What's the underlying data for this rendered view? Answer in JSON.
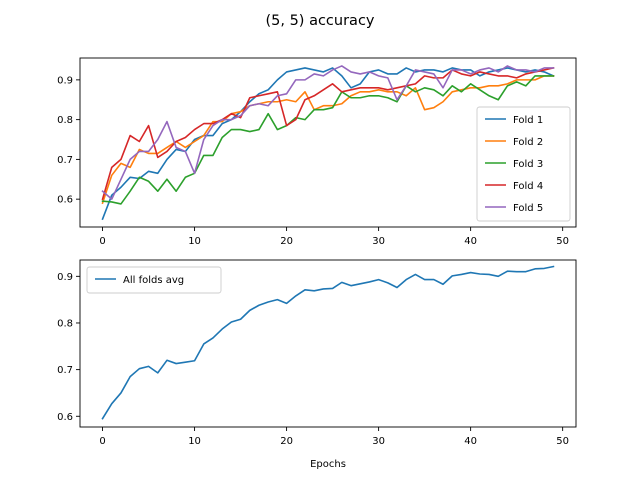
{
  "figure": {
    "title": "(5, 5) accuracy"
  },
  "chart_data": [
    {
      "type": "line",
      "title": "",
      "xlabel": "",
      "ylabel": "",
      "xlim": [
        -2.45,
        51.45
      ],
      "ylim": [
        0.53,
        0.955
      ],
      "xticks": [
        0,
        10,
        20,
        30,
        40,
        50
      ],
      "yticks": [
        0.6,
        0.7,
        0.8,
        0.9
      ],
      "legend_position": "lower right",
      "x": [
        0,
        1,
        2,
        3,
        4,
        5,
        6,
        7,
        8,
        9,
        10,
        11,
        12,
        13,
        14,
        15,
        16,
        17,
        18,
        19,
        20,
        21,
        22,
        23,
        24,
        25,
        26,
        27,
        28,
        29,
        30,
        31,
        32,
        33,
        34,
        35,
        36,
        37,
        38,
        39,
        40,
        41,
        42,
        43,
        44,
        45,
        46,
        47,
        48,
        49
      ],
      "series": [
        {
          "name": "Fold 1",
          "color": "#1f77b4",
          "values": [
            0.55,
            0.61,
            0.63,
            0.655,
            0.652,
            0.67,
            0.665,
            0.7,
            0.725,
            0.72,
            0.75,
            0.76,
            0.76,
            0.79,
            0.8,
            0.82,
            0.845,
            0.865,
            0.875,
            0.9,
            0.92,
            0.925,
            0.93,
            0.925,
            0.92,
            0.93,
            0.91,
            0.88,
            0.89,
            0.92,
            0.925,
            0.915,
            0.915,
            0.93,
            0.92,
            0.925,
            0.925,
            0.92,
            0.93,
            0.925,
            0.925,
            0.91,
            0.92,
            0.925,
            0.93,
            0.925,
            0.92,
            0.925,
            0.92,
            0.91
          ]
        },
        {
          "name": "Fold 2",
          "color": "#ff7f0e",
          "values": [
            0.59,
            0.66,
            0.69,
            0.68,
            0.725,
            0.715,
            0.715,
            0.73,
            0.745,
            0.73,
            0.745,
            0.76,
            0.795,
            0.795,
            0.815,
            0.82,
            0.835,
            0.84,
            0.845,
            0.845,
            0.85,
            0.845,
            0.87,
            0.825,
            0.835,
            0.835,
            0.84,
            0.86,
            0.87,
            0.87,
            0.875,
            0.87,
            0.87,
            0.86,
            0.88,
            0.825,
            0.83,
            0.845,
            0.87,
            0.875,
            0.88,
            0.88,
            0.885,
            0.885,
            0.89,
            0.9,
            0.9,
            0.9,
            0.91,
            0.91
          ]
        },
        {
          "name": "Fold 3",
          "color": "#2ca02c",
          "values": [
            0.595,
            0.593,
            0.588,
            0.62,
            0.655,
            0.645,
            0.62,
            0.65,
            0.62,
            0.655,
            0.665,
            0.71,
            0.71,
            0.755,
            0.775,
            0.775,
            0.77,
            0.775,
            0.815,
            0.775,
            0.785,
            0.805,
            0.8,
            0.825,
            0.825,
            0.83,
            0.87,
            0.855,
            0.855,
            0.86,
            0.86,
            0.855,
            0.845,
            0.885,
            0.87,
            0.88,
            0.875,
            0.86,
            0.885,
            0.87,
            0.89,
            0.875,
            0.86,
            0.85,
            0.885,
            0.895,
            0.885,
            0.91,
            0.91,
            0.91
          ]
        },
        {
          "name": "Fold 4",
          "color": "#d62728",
          "values": [
            0.6,
            0.68,
            0.7,
            0.76,
            0.745,
            0.785,
            0.705,
            0.72,
            0.745,
            0.755,
            0.775,
            0.79,
            0.79,
            0.8,
            0.815,
            0.805,
            0.855,
            0.86,
            0.865,
            0.87,
            0.785,
            0.8,
            0.85,
            0.86,
            0.875,
            0.89,
            0.87,
            0.875,
            0.88,
            0.88,
            0.88,
            0.875,
            0.88,
            0.885,
            0.89,
            0.91,
            0.905,
            0.905,
            0.925,
            0.915,
            0.91,
            0.92,
            0.915,
            0.91,
            0.91,
            0.905,
            0.915,
            0.92,
            0.925,
            0.93
          ]
        },
        {
          "name": "Fold 5",
          "color": "#9467bd",
          "values": [
            0.62,
            0.6,
            0.65,
            0.7,
            0.72,
            0.72,
            0.75,
            0.795,
            0.73,
            0.72,
            0.665,
            0.75,
            0.785,
            0.8,
            0.8,
            0.81,
            0.835,
            0.84,
            0.835,
            0.86,
            0.865,
            0.9,
            0.9,
            0.915,
            0.91,
            0.925,
            0.935,
            0.92,
            0.915,
            0.92,
            0.91,
            0.905,
            0.85,
            0.885,
            0.925,
            0.92,
            0.915,
            0.88,
            0.925,
            0.925,
            0.915,
            0.925,
            0.93,
            0.92,
            0.935,
            0.925,
            0.925,
            0.92,
            0.93,
            0.93
          ]
        }
      ]
    },
    {
      "type": "line",
      "title": "",
      "xlabel": "Epochs",
      "ylabel": "",
      "xlim": [
        -2.45,
        51.45
      ],
      "ylim": [
        0.577,
        0.935
      ],
      "xticks": [
        0,
        10,
        20,
        30,
        40,
        50
      ],
      "yticks": [
        0.6,
        0.7,
        0.8,
        0.9
      ],
      "legend_position": "upper left",
      "x": [
        0,
        1,
        2,
        3,
        4,
        5,
        6,
        7,
        8,
        9,
        10,
        11,
        12,
        13,
        14,
        15,
        16,
        17,
        18,
        19,
        20,
        21,
        22,
        23,
        24,
        25,
        26,
        27,
        28,
        29,
        30,
        31,
        32,
        33,
        34,
        35,
        36,
        37,
        38,
        39,
        40,
        41,
        42,
        43,
        44,
        45,
        46,
        47,
        48,
        49
      ],
      "series": [
        {
          "name": "All folds avg",
          "color": "#1f77b4",
          "values": [
            0.595,
            0.627,
            0.65,
            0.685,
            0.702,
            0.707,
            0.693,
            0.72,
            0.713,
            0.716,
            0.719,
            0.755,
            0.768,
            0.787,
            0.802,
            0.808,
            0.827,
            0.838,
            0.845,
            0.85,
            0.842,
            0.858,
            0.871,
            0.869,
            0.873,
            0.874,
            0.887,
            0.88,
            0.884,
            0.888,
            0.893,
            0.886,
            0.876,
            0.893,
            0.904,
            0.893,
            0.893,
            0.883,
            0.901,
            0.904,
            0.908,
            0.905,
            0.904,
            0.9,
            0.911,
            0.91,
            0.91,
            0.916,
            0.917,
            0.921
          ]
        }
      ]
    }
  ]
}
